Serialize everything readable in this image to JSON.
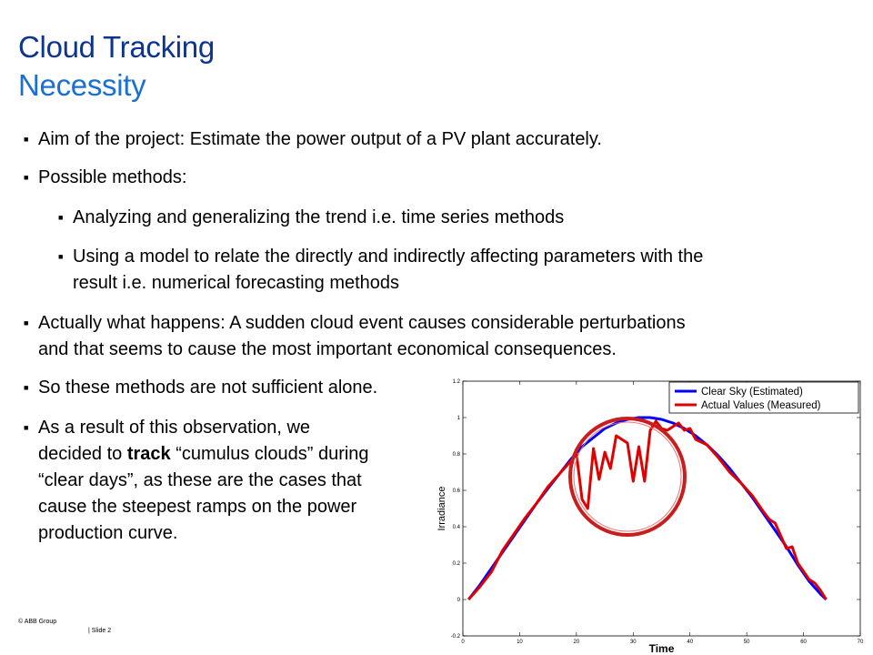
{
  "slide": {
    "title_line1": "Cloud Tracking",
    "title_line2": "Necessity",
    "bullets": [
      "Aim of the project: Estimate the power output of a PV plant accurately.",
      "Possible methods:",
      "Analyzing and generalizing the trend i.e. time series methods",
      "Using a model to relate the directly and indirectly affecting parameters with the",
      "result i.e. numerical forecasting methods",
      "Actually what happens: A sudden cloud event causes considerable perturbations",
      "and that seems to cause the most important economical consequences.",
      "So these methods are not sufficient alone.",
      "As a result of this observation, we",
      "decided to ",
      "track",
      " “cumulus clouds” during",
      "“clear days”, as these are the cases that",
      "cause the steepest ramps on the power",
      "production curve."
    ],
    "footer_copyright": "© ABB Group",
    "footer_slide": "| Slide 2"
  },
  "colors": {
    "title_dark": "#0d3590",
    "title_light": "#1a6fd4",
    "clear_sky": "#0000ff",
    "actual": "#e00000",
    "circle": "#c81e1e"
  },
  "chart_data": {
    "type": "line",
    "xlabel": "Time",
    "ylabel": "Irradiance",
    "xlim": [
      0,
      70
    ],
    "ylim": [
      -0.2,
      1.2
    ],
    "xticks": [
      "0",
      "10",
      "20",
      "30",
      "40",
      "50",
      "60",
      "70"
    ],
    "yticks": [
      "-0.2",
      "0",
      "0.2",
      "0.4",
      "0.6",
      "0.8",
      "1",
      "1.2"
    ],
    "grid": false,
    "legend_position": "top-right",
    "series": [
      {
        "name": "Clear Sky (Estimated)",
        "x": [
          1,
          3,
          5,
          7,
          9,
          11,
          13,
          15,
          17,
          19,
          21,
          23,
          25,
          27,
          29,
          31,
          32,
          33,
          35,
          37,
          39,
          41,
          43,
          45,
          47,
          49,
          51,
          53,
          55,
          57,
          59,
          61,
          63,
          64
        ],
        "y": [
          0.0,
          0.08,
          0.17,
          0.26,
          0.35,
          0.44,
          0.53,
          0.61,
          0.69,
          0.77,
          0.84,
          0.89,
          0.94,
          0.97,
          0.99,
          1.0,
          1.0,
          1.0,
          0.99,
          0.97,
          0.94,
          0.9,
          0.85,
          0.79,
          0.72,
          0.64,
          0.56,
          0.47,
          0.38,
          0.29,
          0.19,
          0.1,
          0.03,
          0.0
        ]
      },
      {
        "name": "Actual Values (Measured)",
        "x": [
          1,
          3,
          5,
          7,
          9,
          11,
          13,
          15,
          17,
          19,
          20,
          21,
          22,
          23,
          24,
          25,
          26,
          27,
          28,
          29,
          30,
          31,
          32,
          33,
          34,
          35,
          36,
          37,
          38,
          39,
          40,
          41,
          43,
          45,
          47,
          49,
          51,
          53,
          54,
          55,
          57,
          58,
          59,
          61,
          62,
          63,
          64
        ],
        "y": [
          0.0,
          0.07,
          0.15,
          0.27,
          0.36,
          0.45,
          0.53,
          0.62,
          0.69,
          0.76,
          0.8,
          0.55,
          0.5,
          0.83,
          0.66,
          0.81,
          0.72,
          0.9,
          0.88,
          0.86,
          0.65,
          0.84,
          0.65,
          0.93,
          0.98,
          0.94,
          0.93,
          0.95,
          0.97,
          0.93,
          0.94,
          0.88,
          0.85,
          0.78,
          0.7,
          0.64,
          0.57,
          0.48,
          0.44,
          0.42,
          0.28,
          0.29,
          0.2,
          0.11,
          0.09,
          0.05,
          0.0
        ]
      }
    ]
  }
}
